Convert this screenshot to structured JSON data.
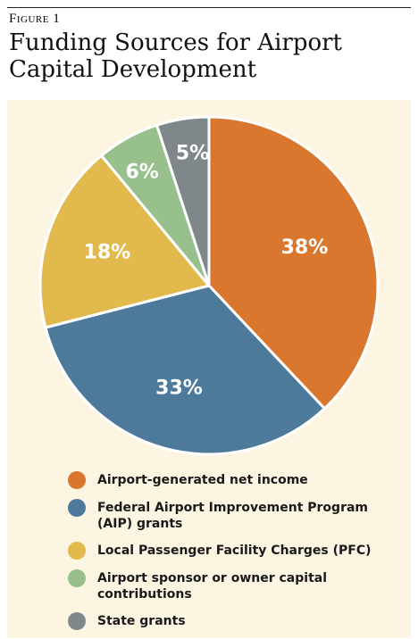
{
  "header": {
    "figure_label": "Figure 1",
    "title": "Funding Sources for Airport Capital Development"
  },
  "colors": {
    "panel_background": "#fcf5e2",
    "slice_border": "#ffffff"
  },
  "chart_data": {
    "type": "pie",
    "title": "Funding Sources for Airport Capital Development",
    "value_unit": "%",
    "slices": [
      {
        "label": "Airport-generated net income",
        "value": 38,
        "display": "38%",
        "color": "#d9772e"
      },
      {
        "label": "Federal Airport Improvement Program (AIP) grants",
        "value": 33,
        "display": "33%",
        "color": "#4d7a9b"
      },
      {
        "label": "Local Passenger Facility Charges (PFC)",
        "value": 18,
        "display": "18%",
        "color": "#e2b94d"
      },
      {
        "label": "Airport sponsor or owner capital contributions",
        "value": 6,
        "display": "6%",
        "color": "#97c08d"
      },
      {
        "label": "State grants",
        "value": 5,
        "display": "5%",
        "color": "#7f878b"
      }
    ],
    "legend_position": "bottom"
  }
}
